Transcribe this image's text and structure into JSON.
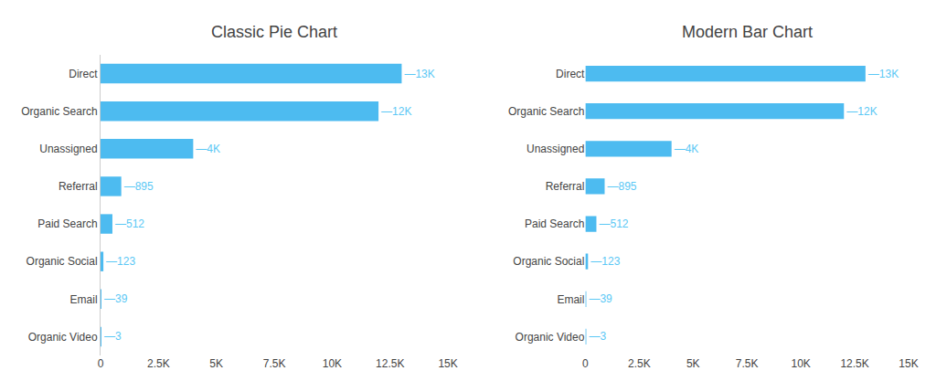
{
  "chart_data": [
    {
      "type": "bar",
      "orientation": "horizontal",
      "title": "Classic Pie Chart",
      "categories": [
        "Direct",
        "Organic Search",
        "Unassigned",
        "Referral",
        "Paid Search",
        "Organic Social",
        "Email",
        "Organic Video"
      ],
      "values": [
        13000,
        12000,
        4000,
        895,
        512,
        123,
        39,
        3
      ],
      "value_labels": [
        "—13K",
        "—12K",
        "—4K",
        "—895",
        "—512",
        "—123",
        "—39",
        "—3"
      ],
      "data_labels": true,
      "color": "#4DBBF0",
      "xlim": [
        0,
        15000
      ],
      "xticks": [
        0,
        {
          "value": 2500,
          "label": "2.5K"
        },
        {
          "value": 5000,
          "label": "5K"
        },
        {
          "value": 7500,
          "label": "7.5K"
        },
        {
          "value": 10000,
          "label": "10K"
        },
        {
          "value": 12500,
          "label": "12.5K"
        },
        {
          "value": 15000,
          "label": "15K"
        }
      ],
      "grid": false
    },
    {
      "type": "bar",
      "orientation": "horizontal",
      "title": "Modern Bar Chart",
      "categories": [
        "Direct",
        "Organic Search",
        "Unassigned",
        "Referral",
        "Paid Search",
        "Organic Social",
        "Email",
        "Organic Video"
      ],
      "values": [
        13000,
        12000,
        4000,
        895,
        512,
        123,
        39,
        3
      ],
      "value_labels": [
        "—13K",
        "—12K",
        "—4K",
        "—895",
        "—512",
        "—123",
        "—39",
        "—3"
      ],
      "data_labels": true,
      "color": "#4DBBF0",
      "xlim": [
        0,
        15000
      ],
      "xticks": [
        0,
        {
          "value": 2500,
          "label": "2.5K"
        },
        {
          "value": 5000,
          "label": "5K"
        },
        {
          "value": 7500,
          "label": "7.5K"
        },
        {
          "value": 10000,
          "label": "10K"
        },
        {
          "value": 12500,
          "label": "12.5K"
        },
        {
          "value": 15000,
          "label": "15K"
        }
      ],
      "grid": false
    }
  ]
}
